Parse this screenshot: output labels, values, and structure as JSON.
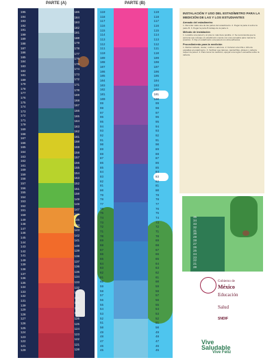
{
  "partA": {
    "title": "PARTE (A)",
    "left_values": [
      195,
      194,
      193,
      192,
      191,
      190,
      189,
      188,
      187,
      186,
      185,
      184,
      183,
      182,
      181,
      180,
      179,
      178,
      177,
      176,
      175,
      174,
      173,
      172,
      171,
      170,
      169,
      168,
      167,
      166,
      165,
      164,
      163,
      162,
      161,
      160,
      159,
      158,
      157,
      156,
      155,
      154,
      153,
      152,
      151,
      150,
      149,
      148,
      147,
      146,
      145,
      144,
      143,
      142,
      141,
      140,
      139,
      138,
      137,
      136,
      135,
      134,
      133,
      132,
      131,
      130,
      129,
      128,
      127,
      126,
      125,
      124,
      123,
      122,
      121,
      120
    ],
    "right_values": [
      185,
      184,
      183,
      182,
      181,
      180,
      179,
      178,
      177,
      176,
      175,
      174,
      173,
      172,
      171,
      170,
      169,
      168,
      167,
      166,
      165,
      164,
      163,
      162,
      161,
      160,
      159,
      158,
      157,
      156,
      155,
      154,
      153,
      152,
      151,
      150,
      149,
      148,
      147,
      146,
      145,
      144,
      143,
      142,
      141,
      140,
      139,
      138,
      137,
      136,
      135,
      134,
      133,
      132,
      131,
      130,
      129,
      128,
      127,
      126,
      125,
      124,
      123,
      122,
      121,
      120
    ]
  },
  "partB": {
    "title": "PARTE (B)",
    "values": [
      119,
      118,
      117,
      116,
      115,
      114,
      113,
      112,
      111,
      110,
      109,
      108,
      107,
      106,
      105,
      104,
      103,
      102,
      101,
      100,
      99,
      98,
      97,
      96,
      95,
      94,
      93,
      92,
      91,
      90,
      89,
      88,
      87,
      86,
      85,
      84,
      83,
      82,
      81,
      80,
      79,
      78,
      77,
      76,
      75,
      74,
      73,
      72,
      71,
      70,
      69,
      68,
      67,
      66,
      65,
      64,
      63,
      62,
      61,
      60,
      59,
      58,
      57,
      56,
      55,
      54,
      53,
      52,
      51,
      50,
      49,
      48,
      47,
      46,
      45
    ]
  },
  "instructions": {
    "title": "INSTALACIÓN Y USO DEL ESTADÍMETRO PARA LA MEDICIÓN DE LAS Y LOS ESTUDIANTES",
    "sections": [
      {
        "heading": "Armado del estadímetro",
        "text": "1. Recortar cada una de las partes del estadímetro. 2. Pegar la parte A sobre la parte B. 3. Pegar la parte B debajo de la parte A."
      },
      {
        "heading": "Método de instalación",
        "text": "1. Localice una pared y un piso lo más lisos posible. 2. Se recomienda que la persona que coloque el estadímetro cuente con una escuadra para marcar la posición. 3. Fije el estadímetro a la pared con cinta adhesiva."
      },
      {
        "heading": "Procedimiento para la medición",
        "text": "1. Retirar calzado, suéter, moños o adornos. 2. Colocar a la niña o niño de espaldas al estadímetro. 3. Verificar que talones, pantorrillas, glúteos y cabeza toquen la pared. 4. Para tomar la medición, apoyar una regla o escuadra sobre la cabeza."
      }
    ]
  },
  "partC": {
    "values": [
      35,
      34,
      33,
      32,
      31,
      30,
      29,
      28,
      27,
      26,
      25,
      24,
      23,
      22,
      21,
      20
    ]
  },
  "logos": {
    "gobierno": "Gobierno de",
    "mexico": "México",
    "educacion": "Educación",
    "salud": "Salud",
    "snedif": "SNDIF",
    "vive1": "Vive",
    "vive2": "Saludable",
    "vive3": "Vive Feliz"
  },
  "colors": {
    "partA_stripes": [
      "#c7dee8",
      "#a0c2ce",
      "#86a4bf",
      "#5c6fa4",
      "#2b6b79",
      "#d8cc24",
      "#b8d32c",
      "#5cb646",
      "#eb9236",
      "#f26b2a",
      "#e95b41",
      "#d64346",
      "#c73848",
      "#b42f43"
    ],
    "partB_stripes": [
      "#f0459a",
      "#c9409b",
      "#8a4da5",
      "#6c4fa0",
      "#465fb0",
      "#3f73bd",
      "#3b84c5",
      "#58a0d6",
      "#7ac7e5"
    ]
  }
}
